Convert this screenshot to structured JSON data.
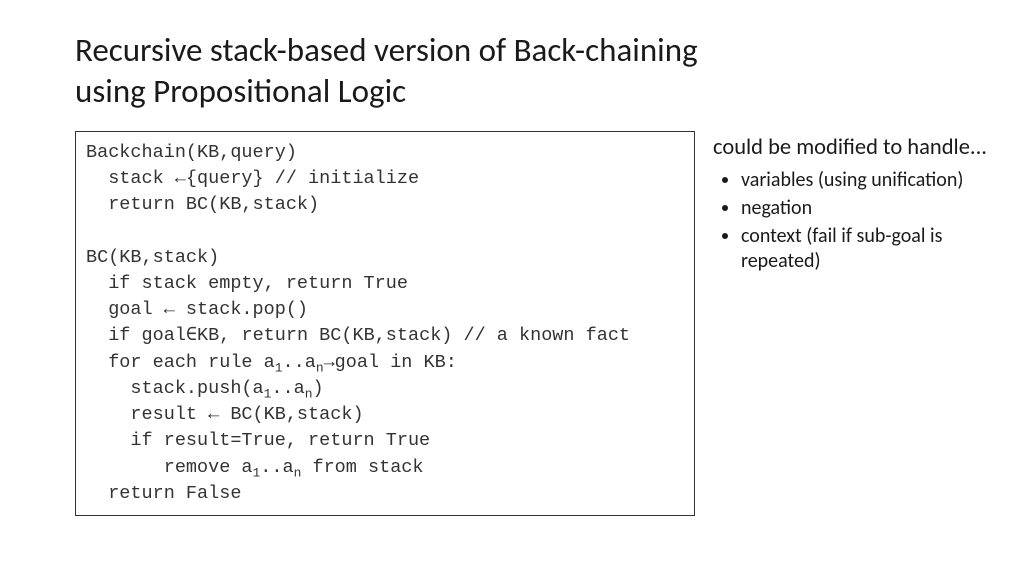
{
  "title_line1": "Recursive stack-based version of Back-chaining",
  "title_line2": "using Propositional Logic",
  "code": {
    "l1": "Backchain(KB,query)",
    "l2": "  stack ←{query} // initialize",
    "l3": "  return BC(KB,stack)",
    "l4": "",
    "l5": "BC(KB,stack)",
    "l6": "  if stack empty, return True",
    "l7": "  goal ← stack.pop()",
    "l8a": "  if goal∈KB, return BC(KB,stack) // a known fact",
    "l9a": "  for each rule a",
    "l9b": "..a",
    "l9c": "→goal in KB:",
    "l10a": "    stack.push(a",
    "l10b": "..a",
    "l10c": ")",
    "l11": "    result ← BC(KB,stack)",
    "l12": "    if result=True, return True",
    "l13a": "       remove a",
    "l13b": "..a",
    "l13c": " from stack",
    "l14": "  return False",
    "sub1": "1",
    "subn": "n"
  },
  "sidebar": {
    "heading": "could be modified to handle...",
    "items": [
      "variables (using unification)",
      "negation",
      "context (fail if sub-goal is repeated)"
    ]
  },
  "colors": {
    "text": "#1a1a1a",
    "border": "#333333",
    "bg": "#ffffff"
  }
}
